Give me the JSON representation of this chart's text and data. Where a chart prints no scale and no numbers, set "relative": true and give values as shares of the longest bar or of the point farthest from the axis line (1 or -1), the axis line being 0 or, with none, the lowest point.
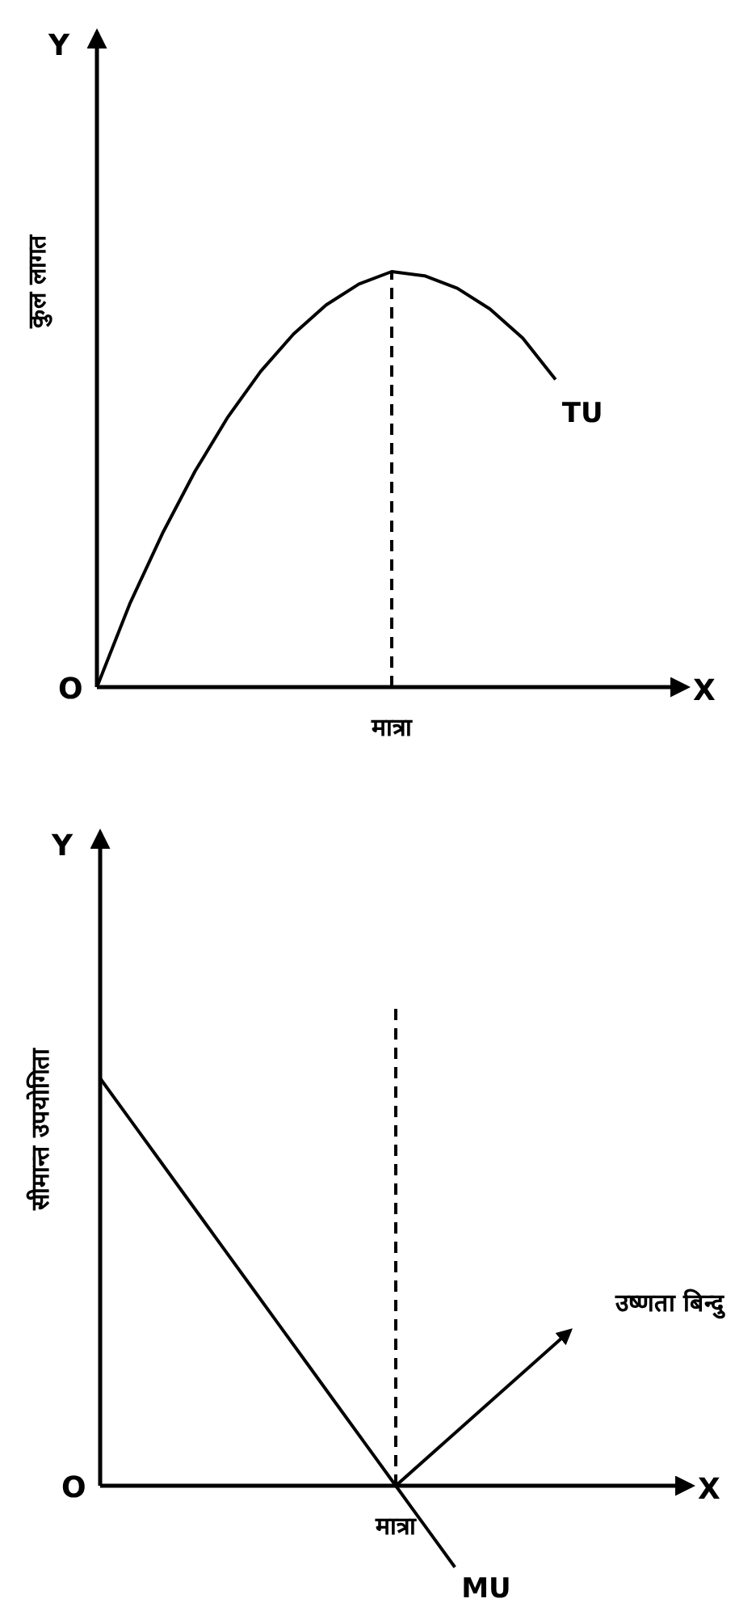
{
  "chart_data": [
    {
      "type": "line",
      "relative": true,
      "xlabel": "मात्रा",
      "ylabel": "कुल लागत",
      "annotations": [
        "Y",
        "X",
        "O"
      ],
      "categories": [
        null,
        null,
        null,
        null,
        null,
        null,
        null,
        null,
        null,
        null,
        null,
        null,
        null,
        null,
        null,
        null,
        null,
        null,
        null
      ],
      "series": [
        {
          "name": "TU",
          "color": "#000000",
          "values": [
            0,
            0.2,
            0.37,
            0.52,
            0.65,
            0.76,
            0.85,
            0.92,
            0.97,
            1,
            0.99,
            0.96,
            0.91,
            0.84,
            0.74,
            null,
            null,
            null,
            null
          ]
        }
      ]
    },
    {
      "type": "line",
      "relative": true,
      "xlabel": "मात्रा",
      "ylabel": "सीमान्त उपयोगिता",
      "annotations": [
        "Y",
        "X",
        "O",
        "उष्णता बिन्दु"
      ],
      "categories": [
        null,
        null,
        null,
        null,
        null,
        null,
        null,
        null,
        null,
        null,
        null,
        null,
        null,
        null,
        null,
        null,
        null,
        null,
        null,
        null,
        null
      ],
      "series": [
        {
          "name": "MU",
          "color": "#000000",
          "values": [
            1,
            0.9,
            0.8,
            0.7,
            0.6,
            0.5,
            0.4,
            0.3,
            0.2,
            0.1,
            0,
            -0.1,
            -0.2,
            null,
            null,
            null,
            null,
            null,
            null,
            null,
            null
          ]
        }
      ]
    }
  ]
}
